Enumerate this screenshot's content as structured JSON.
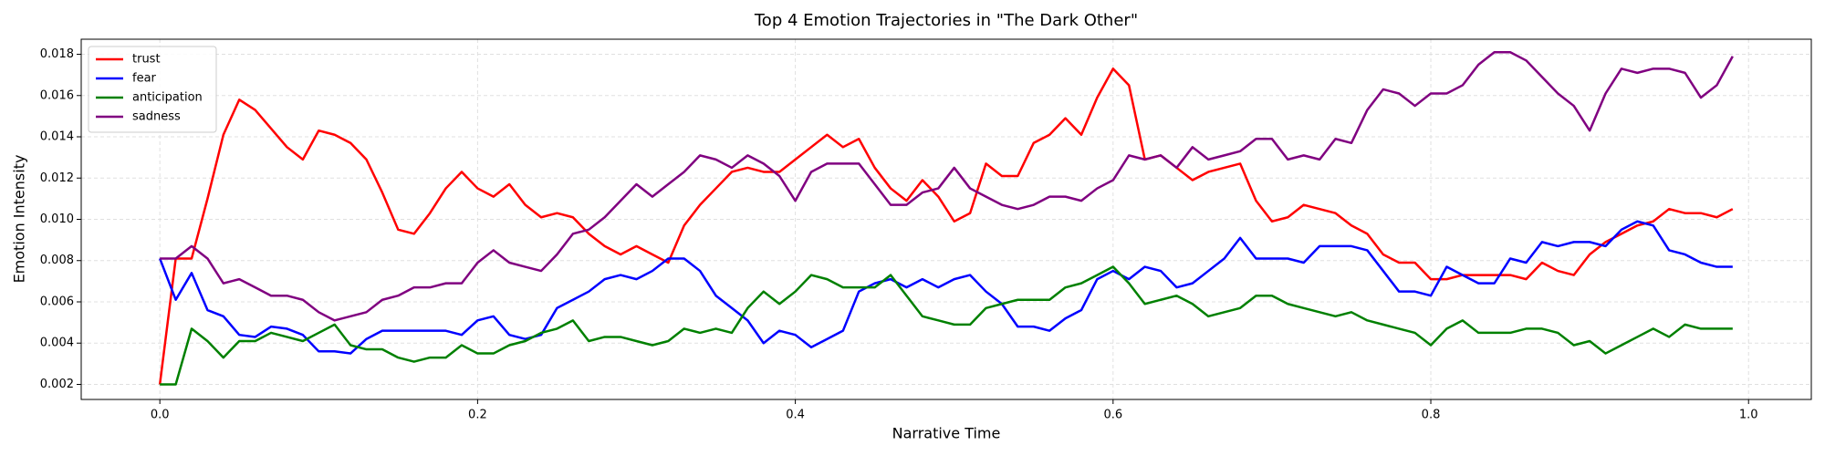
{
  "chart_data": {
    "type": "line",
    "title": "Top 4 Emotion Trajectories in \"The Dark Other\"",
    "x_label": "Narrative Time",
    "y_label": "Emotion Intensity",
    "x": [
      0,
      0.01,
      0.02,
      0.03,
      0.04,
      0.05,
      0.06,
      0.07,
      0.08,
      0.09,
      0.1,
      0.11,
      0.12,
      0.13,
      0.14,
      0.15,
      0.16,
      0.17,
      0.18,
      0.19,
      0.2,
      0.21,
      0.22,
      0.23,
      0.24,
      0.25,
      0.26,
      0.27,
      0.28,
      0.29,
      0.3,
      0.31,
      0.32,
      0.33,
      0.34,
      0.35,
      0.36,
      0.37,
      0.38,
      0.39,
      0.4,
      0.41,
      0.42,
      0.43,
      0.44,
      0.45,
      0.46,
      0.47,
      0.48,
      0.49,
      0.5,
      0.51,
      0.52,
      0.53,
      0.54,
      0.55,
      0.56,
      0.57,
      0.58,
      0.59,
      0.6,
      0.61,
      0.62,
      0.63,
      0.64,
      0.65,
      0.66,
      0.67,
      0.68,
      0.69,
      0.7,
      0.71,
      0.72,
      0.73,
      0.74,
      0.75,
      0.76,
      0.77,
      0.78,
      0.79,
      0.8,
      0.81,
      0.82,
      0.83,
      0.84,
      0.85,
      0.86,
      0.87,
      0.88,
      0.89,
      0.9,
      0.91,
      0.92,
      0.93,
      0.94,
      0.95,
      0.96,
      0.97,
      0.98,
      0.99
    ],
    "series": [
      {
        "name": "trust",
        "color": "#ff0000",
        "values": [
          0.002,
          0.0081,
          0.0081,
          0.011,
          0.0141,
          0.0158,
          0.0153,
          0.0144,
          0.0135,
          0.0129,
          0.0143,
          0.0141,
          0.0137,
          0.0129,
          0.0113,
          0.0095,
          0.0093,
          0.0103,
          0.0115,
          0.0123,
          0.0115,
          0.0111,
          0.0117,
          0.0107,
          0.0101,
          0.0103,
          0.0101,
          0.0093,
          0.0087,
          0.0083,
          0.0087,
          0.0083,
          0.0079,
          0.0097,
          0.0107,
          0.0115,
          0.0123,
          0.0125,
          0.0123,
          0.0123,
          0.0129,
          0.0135,
          0.0141,
          0.0135,
          0.0139,
          0.0125,
          0.0115,
          0.0109,
          0.0119,
          0.0111,
          0.0099,
          0.0103,
          0.0127,
          0.0121,
          0.0121,
          0.0137,
          0.0141,
          0.0149,
          0.0141,
          0.0159,
          0.0173,
          0.0165,
          0.0129,
          0.0131,
          0.0125,
          0.0119,
          0.0123,
          0.0125,
          0.0127,
          0.0109,
          0.0099,
          0.0101,
          0.0107,
          0.0105,
          0.0103,
          0.0097,
          0.0093,
          0.0083,
          0.0079,
          0.0079,
          0.0071,
          0.0071,
          0.0073,
          0.0073,
          0.0073,
          0.0073,
          0.0071,
          0.0079,
          0.0075,
          0.0073,
          0.0083,
          0.0089,
          0.0093,
          0.0097,
          0.0099,
          0.0105,
          0.0103,
          0.0103,
          0.0101,
          0.0105
        ]
      },
      {
        "name": "fear",
        "color": "#0000ff",
        "values": [
          0.0081,
          0.0061,
          0.0074,
          0.0056,
          0.0053,
          0.0044,
          0.0043,
          0.0048,
          0.0047,
          0.0044,
          0.0036,
          0.0036,
          0.0035,
          0.0042,
          0.0046,
          0.0046,
          0.0046,
          0.0046,
          0.0046,
          0.0044,
          0.0051,
          0.0053,
          0.0044,
          0.0042,
          0.0044,
          0.0057,
          0.0061,
          0.0065,
          0.0071,
          0.0073,
          0.0071,
          0.0075,
          0.0081,
          0.0081,
          0.0075,
          0.0063,
          0.0057,
          0.0051,
          0.004,
          0.0046,
          0.0044,
          0.0038,
          0.0042,
          0.0046,
          0.0065,
          0.0069,
          0.0071,
          0.0067,
          0.0071,
          0.0067,
          0.0071,
          0.0073,
          0.0065,
          0.0059,
          0.0048,
          0.0048,
          0.0046,
          0.0052,
          0.0056,
          0.0071,
          0.0075,
          0.0071,
          0.0077,
          0.0075,
          0.0067,
          0.0069,
          0.0075,
          0.0081,
          0.0091,
          0.0081,
          0.0081,
          0.0081,
          0.0079,
          0.0087,
          0.0087,
          0.0087,
          0.0085,
          0.0075,
          0.0065,
          0.0065,
          0.0063,
          0.0077,
          0.0073,
          0.0069,
          0.0069,
          0.0081,
          0.0079,
          0.0089,
          0.0087,
          0.0089,
          0.0089,
          0.0087,
          0.0095,
          0.0099,
          0.0097,
          0.0085,
          0.0083,
          0.0079,
          0.0077,
          0.0077
        ]
      },
      {
        "name": "anticipation",
        "color": "#008000",
        "values": [
          0.002,
          0.002,
          0.0047,
          0.0041,
          0.0033,
          0.0041,
          0.0041,
          0.0045,
          0.0043,
          0.0041,
          0.0045,
          0.0049,
          0.0039,
          0.0037,
          0.0037,
          0.0033,
          0.0031,
          0.0033,
          0.0033,
          0.0039,
          0.0035,
          0.0035,
          0.0039,
          0.0041,
          0.0045,
          0.0047,
          0.0051,
          0.0041,
          0.0043,
          0.0043,
          0.0041,
          0.0039,
          0.0041,
          0.0047,
          0.0045,
          0.0047,
          0.0045,
          0.0057,
          0.0065,
          0.0059,
          0.0065,
          0.0073,
          0.0071,
          0.0067,
          0.0067,
          0.0067,
          0.0073,
          0.0063,
          0.0053,
          0.0051,
          0.0049,
          0.0049,
          0.0057,
          0.0059,
          0.0061,
          0.0061,
          0.0061,
          0.0067,
          0.0069,
          0.0073,
          0.0077,
          0.0069,
          0.0059,
          0.0061,
          0.0063,
          0.0059,
          0.0053,
          0.0055,
          0.0057,
          0.0063,
          0.0063,
          0.0059,
          0.0057,
          0.0055,
          0.0053,
          0.0055,
          0.0051,
          0.0049,
          0.0047,
          0.0045,
          0.0039,
          0.0047,
          0.0051,
          0.0045,
          0.0045,
          0.0045,
          0.0047,
          0.0047,
          0.0045,
          0.0039,
          0.0041,
          0.0035,
          0.0039,
          0.0043,
          0.0047,
          0.0043,
          0.0049,
          0.0047,
          0.0047,
          0.0047
        ]
      },
      {
        "name": "sadness",
        "color": "#800080",
        "values": [
          0.0081,
          0.0081,
          0.0087,
          0.0081,
          0.0069,
          0.0071,
          0.0067,
          0.0063,
          0.0063,
          0.0061,
          0.0055,
          0.0051,
          0.0053,
          0.0055,
          0.0061,
          0.0063,
          0.0067,
          0.0067,
          0.0069,
          0.0069,
          0.0079,
          0.0085,
          0.0079,
          0.0077,
          0.0075,
          0.0083,
          0.0093,
          0.0095,
          0.0101,
          0.0109,
          0.0117,
          0.0111,
          0.0117,
          0.0123,
          0.0131,
          0.0129,
          0.0125,
          0.0131,
          0.0127,
          0.0121,
          0.0109,
          0.0123,
          0.0127,
          0.0127,
          0.0127,
          0.0117,
          0.0107,
          0.0107,
          0.0113,
          0.0115,
          0.0125,
          0.0115,
          0.0111,
          0.0107,
          0.0105,
          0.0107,
          0.0111,
          0.0111,
          0.0109,
          0.0115,
          0.0119,
          0.0131,
          0.0129,
          0.0131,
          0.0125,
          0.0135,
          0.0129,
          0.0131,
          0.0133,
          0.0139,
          0.0139,
          0.0129,
          0.0131,
          0.0129,
          0.0139,
          0.0137,
          0.0153,
          0.0163,
          0.0161,
          0.0155,
          0.0161,
          0.0161,
          0.0165,
          0.0175,
          0.0181,
          0.0181,
          0.0177,
          0.0169,
          0.0161,
          0.0155,
          0.0143,
          0.0161,
          0.0173,
          0.0171,
          0.0173,
          0.0173,
          0.0171,
          0.0159,
          0.0165,
          0.0179
        ]
      }
    ],
    "xlim": [
      -0.0495,
      1.0395
    ],
    "ylim": [
      0.00127,
      0.01873
    ],
    "xticks": [
      {
        "value": 0,
        "label": "0.0"
      },
      0.2,
      0.4,
      0.6,
      0.8,
      {
        "value": 1,
        "label": "1.0"
      }
    ],
    "yticks": [
      0.002,
      0.004,
      0.006,
      0.008,
      {
        "value": 0.01,
        "label": "0.010"
      },
      0.012,
      0.014,
      0.016,
      0.018
    ],
    "grid": true,
    "legend": "upper left"
  }
}
